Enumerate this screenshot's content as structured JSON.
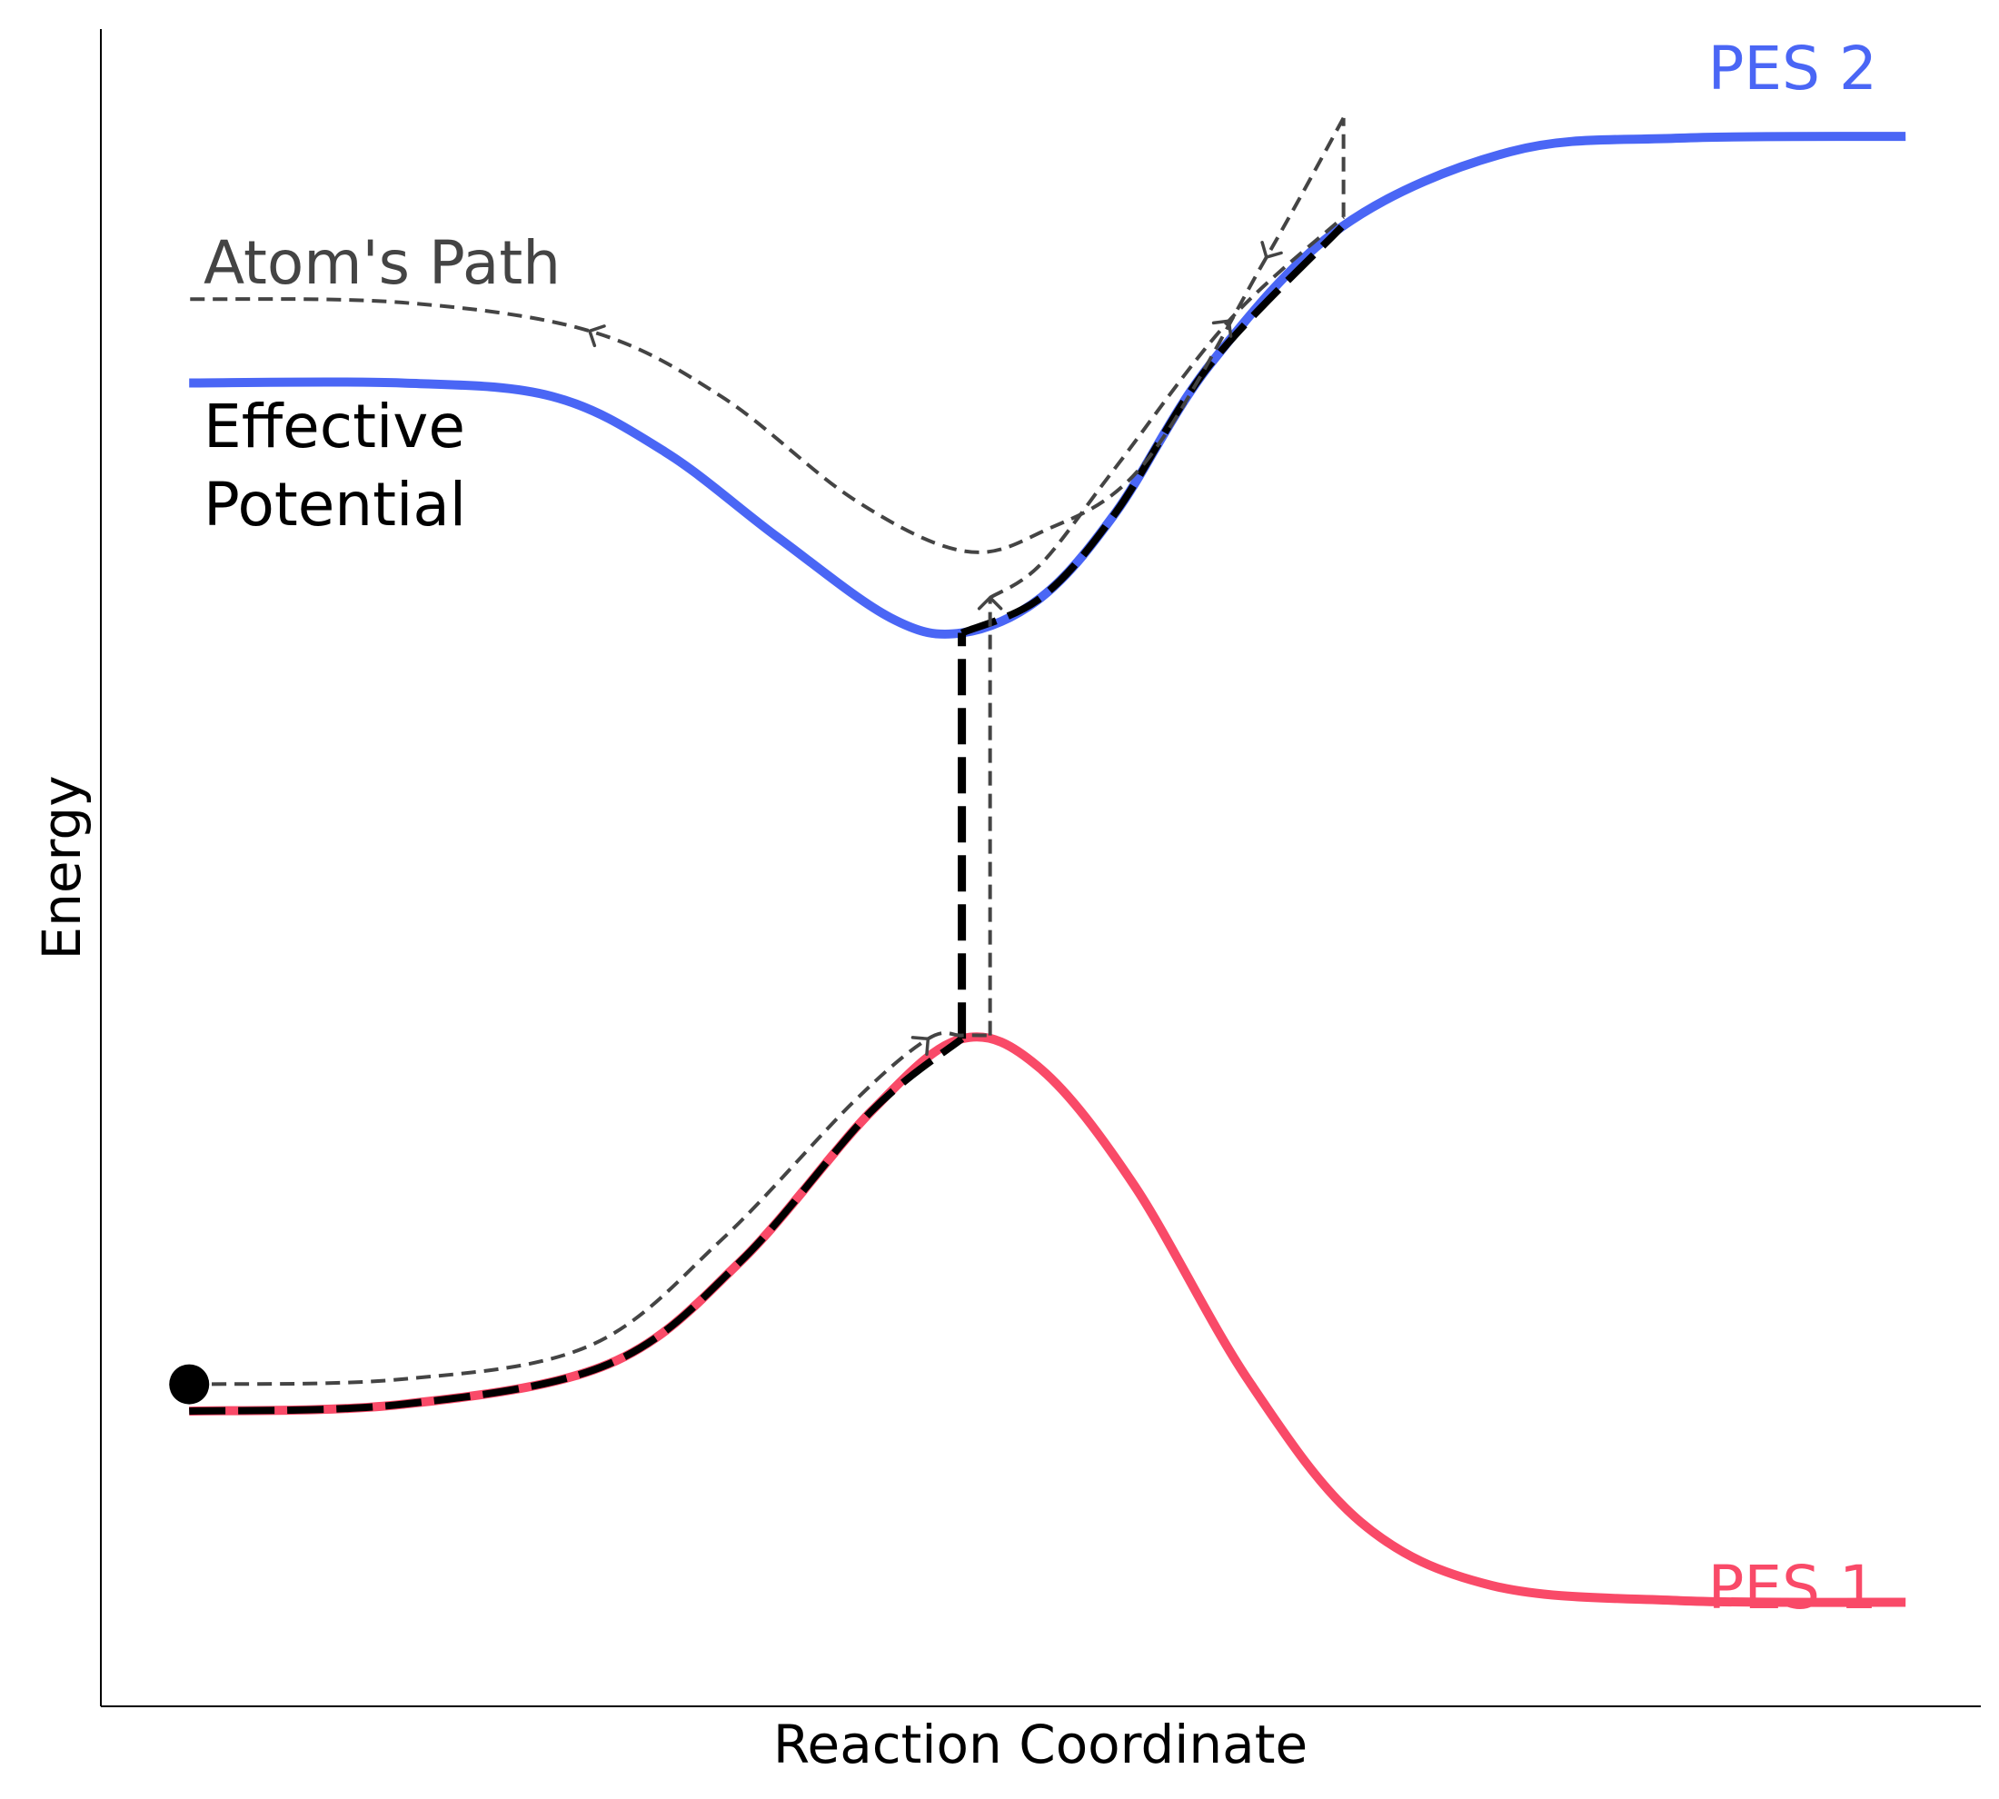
{
  "chart_data": {
    "type": "line",
    "xlabel": "Reaction Coordinate",
    "ylabel": "Energy",
    "xlim": [
      0,
      1
    ],
    "ylim": [
      0,
      1
    ],
    "grid": false,
    "colors": {
      "pes1": "#f94a68",
      "pes2": "#4a66f5",
      "effective": "#000000",
      "path": "#444444",
      "axis": "#000000"
    },
    "series": [
      {
        "name": "PES 1",
        "points": [
          [
            0.047,
            0.176
          ],
          [
            0.16,
            0.18
          ],
          [
            0.27,
            0.204
          ],
          [
            0.34,
            0.265
          ],
          [
            0.41,
            0.355
          ],
          [
            0.458,
            0.398
          ],
          [
            0.5,
            0.38
          ],
          [
            0.55,
            0.31
          ],
          [
            0.61,
            0.195
          ],
          [
            0.67,
            0.11
          ],
          [
            0.74,
            0.072
          ],
          [
            0.84,
            0.063
          ],
          [
            0.96,
            0.062
          ]
        ]
      },
      {
        "name": "PES 2",
        "points": [
          [
            0.047,
            0.789
          ],
          [
            0.16,
            0.789
          ],
          [
            0.24,
            0.781
          ],
          [
            0.3,
            0.748
          ],
          [
            0.36,
            0.697
          ],
          [
            0.42,
            0.649
          ],
          [
            0.458,
            0.64
          ],
          [
            0.5,
            0.661
          ],
          [
            0.54,
            0.712
          ],
          [
            0.59,
            0.8
          ],
          [
            0.66,
            0.882
          ],
          [
            0.75,
            0.927
          ],
          [
            0.84,
            0.935
          ],
          [
            0.96,
            0.936
          ]
        ]
      },
      {
        "name": "Effective Potential",
        "points": [
          [
            0.047,
            0.176
          ],
          [
            0.16,
            0.18
          ],
          [
            0.27,
            0.204
          ],
          [
            0.34,
            0.265
          ],
          [
            0.41,
            0.355
          ],
          [
            0.458,
            0.398
          ],
          [
            0.458,
            0.64
          ],
          [
            0.5,
            0.661
          ],
          [
            0.54,
            0.712
          ],
          [
            0.59,
            0.8
          ],
          [
            0.66,
            0.882
          ]
        ],
        "hop_x": 0.458
      },
      {
        "name": "Atom's Path",
        "points": [
          [
            0.047,
            0.192
          ],
          [
            0.16,
            0.195
          ],
          [
            0.26,
            0.215
          ],
          [
            0.33,
            0.278
          ],
          [
            0.4,
            0.36
          ],
          [
            0.44,
            0.398
          ],
          [
            0.458,
            0.4
          ],
          [
            0.473,
            0.4
          ],
          [
            0.473,
            0.661
          ],
          [
            0.5,
            0.681
          ],
          [
            0.54,
            0.739
          ],
          [
            0.6,
            0.826
          ],
          [
            0.661,
            0.888
          ],
          [
            0.661,
            0.947
          ],
          [
            0.62,
            0.864
          ],
          [
            0.555,
            0.741
          ],
          [
            0.5,
            0.7
          ],
          [
            0.458,
            0.689
          ],
          [
            0.4,
            0.72
          ],
          [
            0.33,
            0.781
          ],
          [
            0.26,
            0.82
          ],
          [
            0.16,
            0.837
          ],
          [
            0.047,
            0.839
          ]
        ],
        "arrows_at_index": [
          5,
          8,
          11,
          14,
          20
        ]
      }
    ],
    "annotations": [
      {
        "text": "PES 2",
        "series": "PES 2"
      },
      {
        "text": "PES 1",
        "series": "PES 1"
      },
      {
        "text": "Atom's Path",
        "series": "Atom's Path"
      },
      {
        "text": "Effective",
        "series": "Effective Potential"
      },
      {
        "text": "Potential",
        "series": "Effective Potential"
      }
    ],
    "start_marker": {
      "x": 0.047,
      "y": 0.192
    }
  }
}
